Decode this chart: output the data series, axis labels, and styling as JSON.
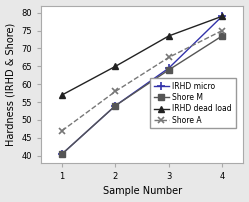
{
  "x": [
    1,
    2,
    3,
    4
  ],
  "series": [
    {
      "label": "IRHD micro",
      "y": [
        40.5,
        54,
        64.5,
        79
      ],
      "color": "#3333aa",
      "marker": "+",
      "linestyle": "-",
      "markersize": 6,
      "linewidth": 1.0,
      "markeredgewidth": 1.2
    },
    {
      "label": "Shore M",
      "y": [
        40.5,
        54,
        64,
        73.5
      ],
      "color": "#555555",
      "marker": "s",
      "linestyle": "-",
      "markersize": 4,
      "linewidth": 1.0,
      "markeredgewidth": 1.0
    },
    {
      "label": "IRHD dead load",
      "y": [
        57,
        65,
        73.5,
        79
      ],
      "color": "#222222",
      "marker": "^",
      "linestyle": "-",
      "markersize": 5,
      "linewidth": 1.0,
      "markeredgewidth": 1.0
    },
    {
      "label": "Shore A",
      "y": [
        47,
        58,
        67.5,
        75
      ],
      "color": "#777777",
      "marker": "x",
      "linestyle": "--",
      "markersize": 5,
      "linewidth": 1.0,
      "markeredgewidth": 1.2
    }
  ],
  "xlabel": "Sample Number",
  "ylabel": "Hardness (IRHD & Shore)",
  "xlim": [
    0.6,
    4.4
  ],
  "ylim": [
    38,
    82
  ],
  "yticks": [
    40,
    45,
    50,
    55,
    60,
    65,
    70,
    75,
    80
  ],
  "xticks": [
    1,
    2,
    3,
    4
  ],
  "label_fontsize": 7,
  "tick_fontsize": 6,
  "legend_fontsize": 5.5,
  "background_color": "#e8e8e8",
  "plot_background": "#ffffff"
}
